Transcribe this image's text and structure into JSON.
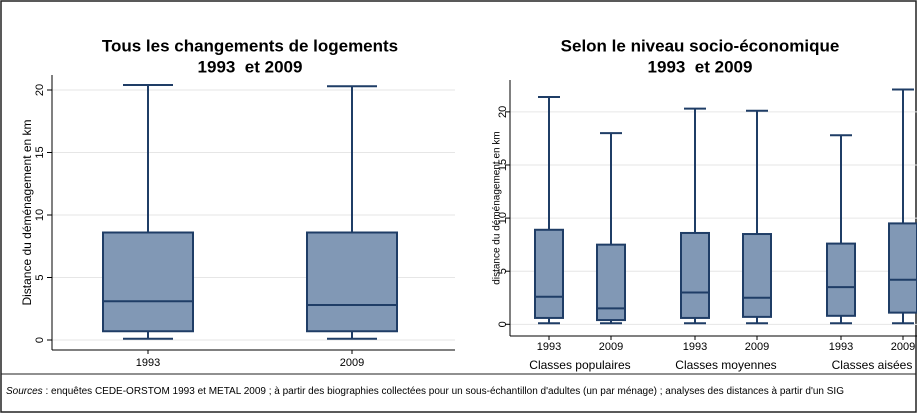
{
  "chart_data": [
    {
      "type": "box",
      "title": "Tous les changements de logements",
      "subtitle": "1993  et 2009",
      "ylabel": "Distance du déménagement en km",
      "categories": [
        "1993",
        "2009"
      ],
      "color": "#8198b5",
      "min": [
        0.1,
        0.1
      ],
      "q1": [
        0.7,
        0.7
      ],
      "median": [
        3.1,
        2.8
      ],
      "q3": [
        8.6,
        8.6
      ],
      "max": [
        20.4,
        20.3
      ],
      "ylim": [
        -0.8,
        21.2
      ],
      "yticks": [
        0,
        5,
        10,
        15,
        20
      ],
      "grid": true
    },
    {
      "type": "box",
      "title": "Selon le niveau socio-économique",
      "subtitle": "1993  et 2009",
      "ylabel": "distance du déménagement en km",
      "categories": [
        "1993",
        "2009",
        "1993",
        "2009",
        "1993",
        "2009"
      ],
      "groups": [
        "Classes populaires",
        "Classes moyennes",
        "Classes aisées"
      ],
      "color": "#8198b5",
      "min": [
        0.1,
        0.1,
        0.1,
        0.1,
        0.1,
        0.1
      ],
      "q1": [
        0.6,
        0.4,
        0.6,
        0.7,
        0.8,
        1.1
      ],
      "median": [
        2.6,
        1.5,
        3.0,
        2.5,
        3.5,
        4.2
      ],
      "q3": [
        8.9,
        7.5,
        8.6,
        8.5,
        7.6,
        9.5
      ],
      "max": [
        21.4,
        18.0,
        20.3,
        20.1,
        17.8,
        22.1
      ],
      "ylim": [
        -1.1,
        23
      ],
      "yticks": [
        0,
        5,
        10,
        15,
        20
      ],
      "grid": true
    }
  ],
  "source": {
    "label": "Sources",
    "text": " : enquêtes CEDE-ORSTOM 1993 et METAL 2009 ; à partir des biographies collectées pour un sous-échantillon d'adultes (un par ménage) ; analyses des distances à partir d'un SIG"
  }
}
